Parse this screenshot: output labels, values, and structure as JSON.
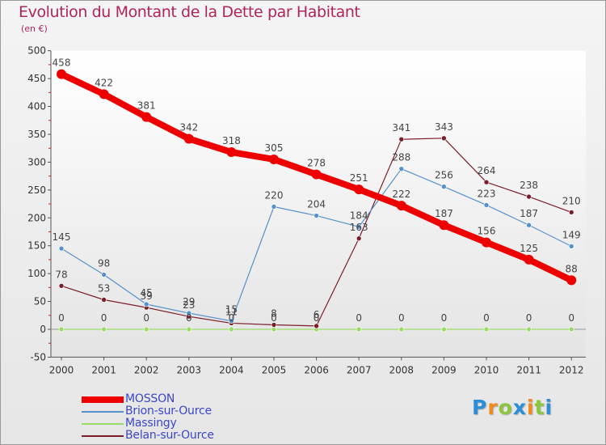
{
  "chart_data": {
    "type": "line",
    "title": "Evolution du Montant de la Dette par Habitant",
    "unit": "(en €)",
    "xlabel": "",
    "ylabel": "",
    "ylim": [
      -50,
      500
    ],
    "yticks": [
      -50,
      0,
      50,
      100,
      150,
      200,
      250,
      300,
      350,
      400,
      450,
      500
    ],
    "grid": false,
    "legend_position": "bottom-left",
    "categories": [
      "2000",
      "2001",
      "2002",
      "2003",
      "2004",
      "2005",
      "2006",
      "2007",
      "2008",
      "2009",
      "2010",
      "2011",
      "2012"
    ],
    "series": [
      {
        "name": "Massingy",
        "color": "#99dd66",
        "values": [
          0,
          0,
          0,
          0,
          0,
          0,
          0,
          0,
          0,
          0,
          0,
          0,
          0
        ],
        "show_labels": true
      },
      {
        "name": "Belan-sur-Ource",
        "color": "#7a1e2a",
        "values": [
          78,
          53,
          39,
          23,
          11,
          8,
          6,
          163,
          341,
          343,
          264,
          238,
          210
        ],
        "show_labels": true
      },
      {
        "name": "Brion-sur-Ource",
        "color": "#5591cc",
        "values": [
          145,
          98,
          45,
          29,
          15,
          220,
          204,
          184,
          288,
          256,
          223,
          187,
          149
        ],
        "show_labels": true
      },
      {
        "name": "MOSSON",
        "color": "#ee0000",
        "values": [
          458,
          422,
          381,
          342,
          318,
          305,
          278,
          251,
          222,
          187,
          156,
          125,
          88
        ],
        "show_labels": true
      }
    ],
    "legend_order": [
      "MOSSON",
      "Brion-sur-Ource",
      "Massingy",
      "Belan-sur-Ource"
    ]
  },
  "brand": {
    "letters": [
      "P",
      "r",
      "o",
      "x",
      "i",
      "t",
      "i"
    ],
    "colors": [
      "#2a8fd8",
      "#f08a1c",
      "#8cc63e",
      "#2a8fd8",
      "#f08a1c",
      "#8cc63e",
      "#2a8fd8"
    ]
  }
}
